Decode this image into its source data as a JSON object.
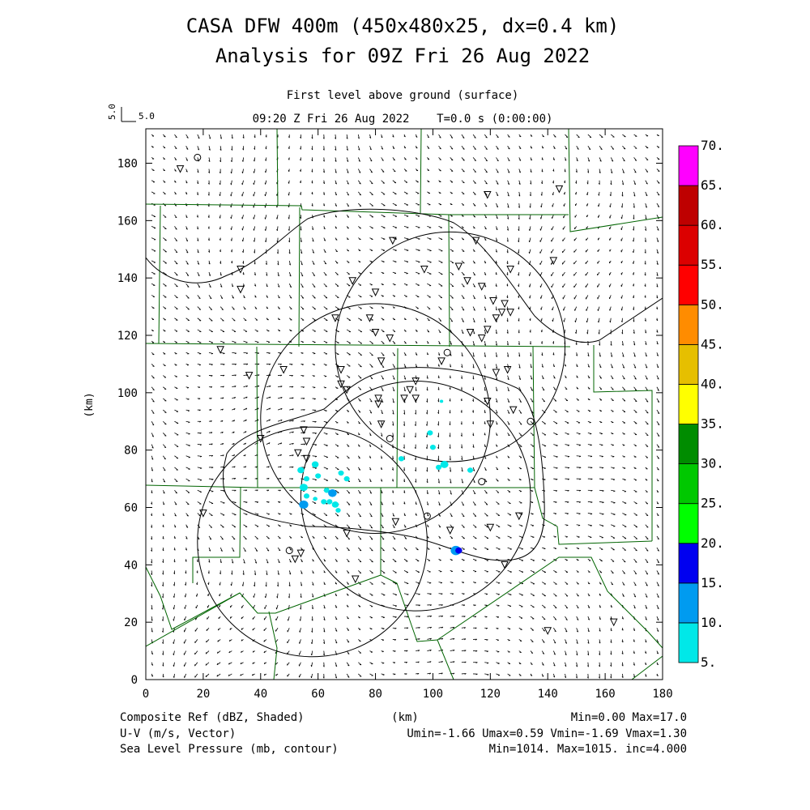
{
  "title": {
    "line1": "CASA DFW 400m (450x480x25, dx=0.4 km)",
    "line2": "Analysis for 09Z Fri 26 Aug 2022"
  },
  "subtitle": {
    "level": "First level above ground (surface)",
    "time": "09:20 Z Fri 26 Aug 2022    T=0.0 s (0:00:00)"
  },
  "vector_ref": {
    "label_v": "5.0",
    "label_h": "5.0"
  },
  "axes": {
    "x": {
      "label": "(km)",
      "min": 0,
      "max": 180,
      "ticks": [
        0,
        20,
        40,
        60,
        80,
        100,
        120,
        140,
        160,
        180
      ]
    },
    "y": {
      "label": "(km)",
      "min": 0,
      "max": 192,
      "ticks": [
        0,
        20,
        40,
        60,
        80,
        100,
        120,
        140,
        160,
        180
      ]
    }
  },
  "colorbar": {
    "levels": [
      "5.",
      "10.",
      "15.",
      "20.",
      "25.",
      "30.",
      "35.",
      "40.",
      "45.",
      "50.",
      "55.",
      "60.",
      "65.",
      "70."
    ],
    "colors": [
      "#00e8e8",
      "#009bf0",
      "#0000f0",
      "#00ff00",
      "#00c800",
      "#008c00",
      "#ffff00",
      "#e6bf00",
      "#ff8c00",
      "#ff0000",
      "#dc0000",
      "#be0000",
      "#ff00ff"
    ]
  },
  "footer": {
    "left": [
      "Composite Ref (dBZ, Shaded)",
      "U-V (m/s, Vector)",
      "Sea Level Pressure (mb, contour)"
    ],
    "center": "(km)",
    "right": [
      "Min=0.00 Max=17.0",
      "Umin=-1.66 Umax=0.59 Vmin=-1.69 Vmax=1.30",
      "Min=1014. Max=1015. inc=4.000"
    ]
  },
  "radar_rings": [
    {
      "cx": 106,
      "cy": 116,
      "r": 40
    },
    {
      "cx": 80,
      "cy": 91,
      "r": 40
    },
    {
      "cx": 94,
      "cy": 64,
      "r": 40
    },
    {
      "cx": 58,
      "cy": 48,
      "r": 40
    }
  ],
  "stations_tri": [
    [
      12,
      178
    ],
    [
      33,
      143
    ],
    [
      33,
      136
    ],
    [
      86,
      153
    ],
    [
      115,
      153
    ],
    [
      144,
      171
    ],
    [
      119,
      169
    ],
    [
      97,
      143
    ],
    [
      109,
      144
    ],
    [
      127,
      143
    ],
    [
      142,
      146
    ],
    [
      72,
      139
    ],
    [
      80,
      135
    ],
    [
      112,
      139
    ],
    [
      117,
      137
    ],
    [
      121,
      132
    ],
    [
      125,
      131
    ],
    [
      127,
      128
    ],
    [
      124,
      128
    ],
    [
      122,
      126
    ],
    [
      66,
      126
    ],
    [
      78,
      126
    ],
    [
      80,
      121
    ],
    [
      85,
      119
    ],
    [
      113,
      121
    ],
    [
      119,
      122
    ],
    [
      117,
      119
    ],
    [
      26,
      115
    ],
    [
      36,
      106
    ],
    [
      48,
      108
    ],
    [
      68,
      108
    ],
    [
      68,
      103
    ],
    [
      70,
      101
    ],
    [
      82,
      111
    ],
    [
      94,
      104
    ],
    [
      92,
      101
    ],
    [
      103,
      111
    ],
    [
      122,
      107
    ],
    [
      126,
      108
    ],
    [
      81,
      98
    ],
    [
      81,
      96
    ],
    [
      90,
      98
    ],
    [
      94,
      98
    ],
    [
      119,
      97
    ],
    [
      128,
      94
    ],
    [
      82,
      89
    ],
    [
      120,
      89
    ],
    [
      55,
      87
    ],
    [
      56,
      83
    ],
    [
      53,
      79
    ],
    [
      56,
      77
    ],
    [
      40,
      84
    ],
    [
      20,
      58
    ],
    [
      130,
      57
    ],
    [
      87,
      55
    ],
    [
      106,
      52
    ],
    [
      120,
      53
    ],
    [
      70,
      51
    ],
    [
      54,
      44
    ],
    [
      52,
      42
    ],
    [
      125,
      40
    ],
    [
      73,
      35
    ],
    [
      140,
      17
    ],
    [
      163,
      20
    ]
  ],
  "stations_circ": [
    [
      18,
      182
    ],
    [
      105,
      114
    ],
    [
      134,
      90
    ],
    [
      85,
      84
    ],
    [
      117,
      69
    ],
    [
      98,
      57
    ],
    [
      50,
      45
    ]
  ],
  "reflectivity": [
    [
      54,
      73,
      1.2,
      "#00e8e8"
    ],
    [
      56,
      70,
      1.0,
      "#00e8e8"
    ],
    [
      55,
      67,
      1.4,
      "#00e8e8"
    ],
    [
      56,
      64,
      1.0,
      "#00e8e8"
    ],
    [
      55,
      61,
      1.6,
      "#009bf0"
    ],
    [
      59,
      75,
      1.2,
      "#00e8e8"
    ],
    [
      60,
      71,
      1.0,
      "#00e8e8"
    ],
    [
      63,
      66,
      1.0,
      "#00e8e8"
    ],
    [
      62,
      62,
      1.0,
      "#00e8e8"
    ],
    [
      65,
      65,
      1.5,
      "#009bf0"
    ],
    [
      66,
      61,
      1.2,
      "#00e8e8"
    ],
    [
      67,
      59,
      0.9,
      "#00e8e8"
    ],
    [
      68,
      72,
      1.0,
      "#00e8e8"
    ],
    [
      70,
      70,
      1.0,
      "#00e8e8"
    ],
    [
      64,
      62,
      1.0,
      "#00e8e8"
    ],
    [
      59,
      63,
      0.8,
      "#00e8e8"
    ],
    [
      89,
      77,
      1.0,
      "#00e8e8"
    ],
    [
      99,
      86,
      1.0,
      "#00e8e8"
    ],
    [
      100,
      81,
      1.0,
      "#00e8e8"
    ],
    [
      102,
      74,
      1.0,
      "#00e8e8"
    ],
    [
      104,
      75,
      1.4,
      "#00e8e8"
    ],
    [
      108,
      45,
      1.8,
      "#009bf0"
    ],
    [
      109,
      45,
      1.2,
      "#0000f0"
    ],
    [
      113,
      73,
      1.0,
      "#00e8e8"
    ],
    [
      103,
      97,
      0.6,
      "#00e8e8"
    ]
  ]
}
